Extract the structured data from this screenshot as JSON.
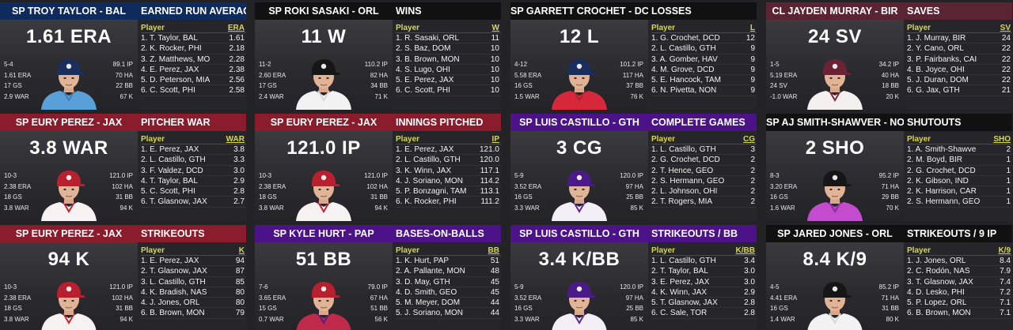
{
  "colors": {
    "black": "#111111",
    "red": "#8a1c2c",
    "navy": "#0f2a5c",
    "purple": "#4c1288",
    "maroon": "#5a2433"
  },
  "cards": [
    {
      "left_title": "SP TROY TAYLOR - BAL",
      "right_title": "EARNED RUN AVERAGE",
      "color": "navy",
      "big": "1.61 ERA",
      "lstats": [
        "5-4",
        "1.61 ERA",
        "17 GS",
        "2.9 WAR"
      ],
      "rstats": [
        "89.1 IP",
        "70 HA",
        "22 BB",
        "67 K"
      ],
      "player_icon": "player-baseball-cap-icon",
      "jersey": "light-blue",
      "cap": "navy",
      "col_head": [
        "Player",
        "ERA"
      ],
      "rows": [
        [
          "1. T. Taylor, BAL",
          "1.61"
        ],
        [
          "2. K. Rocker, PHI",
          "2.18"
        ],
        [
          "3. Z. Matthews, MO",
          "2.28"
        ],
        [
          "4. E. Perez, JAX",
          "2.38"
        ],
        [
          "5. D. Peterson, MIA",
          "2.56"
        ],
        [
          "6. C. Scott, PHI",
          "2.58"
        ]
      ]
    },
    {
      "left_title": "SP ROKI SASAKI - ORL",
      "right_title": "WINS",
      "color": "black",
      "big": "11 W",
      "lstats": [
        "11-2",
        "2.60 ERA",
        "17 GS",
        "2.4 WAR"
      ],
      "rstats": [
        "110.2 IP",
        "82 HA",
        "34 BB",
        "71 K"
      ],
      "player_icon": "player-baseball-cap-icon",
      "jersey": "pinstripe",
      "cap": "black",
      "col_head": [
        "Player",
        "W"
      ],
      "rows": [
        [
          "1. R. Sasaki, ORL",
          "11"
        ],
        [
          "2. S. Baz, DOM",
          "10"
        ],
        [
          "3. B. Brown, MON",
          "10"
        ],
        [
          "4. S. Lugo, OHI",
          "10"
        ],
        [
          "5. E. Perez, JAX",
          "10"
        ],
        [
          "6. C. Scott, PHI",
          "10"
        ]
      ]
    },
    {
      "left_title": "SP GARRETT CROCHET - DCD",
      "right_title": "LOSSES",
      "color": "black",
      "big": "12 L",
      "lstats": [
        "4-12",
        "5.58 ERA",
        "16 GS",
        "1.5 WAR"
      ],
      "rstats": [
        "101.2 IP",
        "117 HA",
        "37 BB",
        "76 K"
      ],
      "player_icon": "player-baseball-cap-icon",
      "jersey": "red",
      "cap": "navy",
      "col_head": [
        "Player",
        "L"
      ],
      "rows": [
        [
          "1. G. Crochet, DCD",
          "12"
        ],
        [
          "2. L. Castillo, GTH",
          "9"
        ],
        [
          "3. A. Gomber, HAV",
          "9"
        ],
        [
          "4. M. Grove, DCD",
          "9"
        ],
        [
          "5. E. Hancock, TAM",
          "9"
        ],
        [
          "6. N. Pivetta, NON",
          "9"
        ]
      ]
    },
    {
      "left_title": "CL JAYDEN MURRAY - BIR",
      "right_title": "SAVES",
      "color": "maroon",
      "big": "24 SV",
      "lstats": [
        "1-5",
        "5.19 ERA",
        "24 SV",
        "-1.0 WAR"
      ],
      "rstats": [
        "34.2 IP",
        "40 HA",
        "18 BB",
        "20 K"
      ],
      "player_icon": "player-baseball-cap-icon",
      "jersey": "white-maroon",
      "cap": "maroon",
      "col_head": [
        "Player",
        "SV"
      ],
      "rows": [
        [
          "1. J. Murray, BIR",
          "24"
        ],
        [
          "2. Y. Cano, ORL",
          "22"
        ],
        [
          "3. P. Fairbanks, CAI",
          "22"
        ],
        [
          "4. B. Joyce, OHI",
          "22"
        ],
        [
          "5. J. Duran, DOM",
          "22"
        ],
        [
          "6. G. Jax, GTH",
          "21"
        ]
      ]
    },
    {
      "left_title": "SP EURY PEREZ - JAX",
      "right_title": "PITCHER WAR",
      "color": "red",
      "big": "3.8 WAR",
      "lstats": [
        "10-3",
        "2.38 ERA",
        "18 GS",
        "3.8 WAR"
      ],
      "rstats": [
        "121.0 IP",
        "102 HA",
        "31 BB",
        "94 K"
      ],
      "player_icon": "player-baseball-cap-icon",
      "jersey": "white-red",
      "cap": "red",
      "col_head": [
        "Player",
        "WAR"
      ],
      "rows": [
        [
          "1. E. Perez, JAX",
          "3.8"
        ],
        [
          "2. L. Castillo, GTH",
          "3.3"
        ],
        [
          "3. F. Valdez, DCD",
          "3.0"
        ],
        [
          "4. T. Taylor, BAL",
          "2.9"
        ],
        [
          "5. C. Scott, PHI",
          "2.8"
        ],
        [
          "6. T. Glasnow, JAX",
          "2.7"
        ]
      ]
    },
    {
      "left_title": "SP EURY PEREZ - JAX",
      "right_title": "INNINGS PITCHED",
      "color": "red",
      "big": "121.0 IP",
      "lstats": [
        "10-3",
        "2.38 ERA",
        "18 GS",
        "3.8 WAR"
      ],
      "rstats": [
        "121.0 IP",
        "102 HA",
        "31 BB",
        "94 K"
      ],
      "player_icon": "player-baseball-cap-icon",
      "jersey": "white-red",
      "cap": "red",
      "col_head": [
        "Player",
        "IP"
      ],
      "rows": [
        [
          "1. E. Perez, JAX",
          "121.0"
        ],
        [
          "2. L. Castillo, GTH",
          "120.0"
        ],
        [
          "3. K. Winn, JAX",
          "117.1"
        ],
        [
          "4. J. Soriano, MON",
          "114.2"
        ],
        [
          "5. P. Bonzagni, TAM",
          "113.1"
        ],
        [
          "6. K. Rocker, PHI",
          "111.2"
        ]
      ]
    },
    {
      "left_title": "SP LUIS CASTILLO - GTH",
      "right_title": "COMPLETE GAMES",
      "color": "purple",
      "big": "3 CG",
      "lstats": [
        "5-9",
        "3.52 ERA",
        "16 GS",
        "3.3 WAR"
      ],
      "rstats": [
        "120.0 IP",
        "97 HA",
        "25 BB",
        "85 K"
      ],
      "player_icon": "player-baseball-cap-icon",
      "jersey": "white-purple",
      "cap": "purple",
      "col_head": [
        "Player",
        "CG"
      ],
      "rows": [
        [
          "1. L. Castillo, GTH",
          "3"
        ],
        [
          "2. G. Crochet, DCD",
          "2"
        ],
        [
          "2. T. Hence, GEO",
          "2"
        ],
        [
          "2. S. Hermann, GEO",
          "2"
        ],
        [
          "2. L. Johnson, OHI",
          "2"
        ],
        [
          "2. T. Rogers, MIA",
          "2"
        ]
      ]
    },
    {
      "left_title": "SP AJ SMITH-SHAWVER - NON",
      "right_title": "SHUTOUTS",
      "color": "black",
      "big": "2 SHO",
      "lstats": [
        "8-3",
        "3.20 ERA",
        "16 GS",
        "1.6 WAR"
      ],
      "rstats": [
        "95.2 IP",
        "71 HA",
        "29 BB",
        "70 K"
      ],
      "player_icon": "player-baseball-cap-icon",
      "jersey": "magenta",
      "cap": "black",
      "col_head": [
        "Player",
        "SHO"
      ],
      "rows": [
        [
          "1. A. Smith-Shawve",
          "2"
        ],
        [
          "2. M. Boyd, BIR",
          "1"
        ],
        [
          "2. G. Crochet, DCD",
          "1"
        ],
        [
          "2. K. Gibson, IND",
          "1"
        ],
        [
          "2. K. Harrison, CAR",
          "1"
        ],
        [
          "2. S. Hermann, GEO",
          "1"
        ]
      ]
    },
    {
      "left_title": "SP EURY PEREZ - JAX",
      "right_title": "STRIKEOUTS",
      "color": "red",
      "big": "94 K",
      "lstats": [
        "10-3",
        "2.38 ERA",
        "18 GS",
        "3.8 WAR"
      ],
      "rstats": [
        "121.0 IP",
        "102 HA",
        "31 BB",
        "94 K"
      ],
      "player_icon": "player-baseball-cap-icon",
      "jersey": "white-red",
      "cap": "red",
      "col_head": [
        "Player",
        "K"
      ],
      "rows": [
        [
          "1. E. Perez, JAX",
          "94"
        ],
        [
          "2. T. Glasnow, JAX",
          "87"
        ],
        [
          "3. L. Castillo, GTH",
          "85"
        ],
        [
          "4. K. Bradish, NAS",
          "80"
        ],
        [
          "4. J. Jones, ORL",
          "80"
        ],
        [
          "6. B. Brown, MON",
          "79"
        ]
      ]
    },
    {
      "left_title": "SP KYLE HURT - PAP",
      "right_title": "BASES-ON-BALLS",
      "color": "purple",
      "big": "51 BB",
      "lstats": [
        "7-6",
        "3.65 ERA",
        "15 GS",
        "0.7 WAR"
      ],
      "rstats": [
        "79.0 IP",
        "67 HA",
        "51 BB",
        "56 K"
      ],
      "player_icon": "player-baseball-cap-icon",
      "jersey": "purple-red",
      "cap": "red",
      "col_head": [
        "Player",
        "BB"
      ],
      "rows": [
        [
          "1. K. Hurt, PAP",
          "51"
        ],
        [
          "2. A. Pallante, MON",
          "48"
        ],
        [
          "3. D. May, GTH",
          "45"
        ],
        [
          "4. D. Smith, GEO",
          "45"
        ],
        [
          "5. M. Meyer, DOM",
          "44"
        ],
        [
          "5. J. Soriano, MON",
          "44"
        ]
      ]
    },
    {
      "left_title": "SP LUIS CASTILLO - GTH",
      "right_title": "STRIKEOUTS / BB",
      "color": "purple",
      "big": "3.4 K/BB",
      "lstats": [
        "5-9",
        "3.52 ERA",
        "16 GS",
        "3.3 WAR"
      ],
      "rstats": [
        "120.0 IP",
        "97 HA",
        "25 BB",
        "85 K"
      ],
      "player_icon": "player-baseball-cap-icon",
      "jersey": "white-purple",
      "cap": "purple",
      "col_head": [
        "Player",
        "K/BB"
      ],
      "rows": [
        [
          "1. L. Castillo, GTH",
          "3.4"
        ],
        [
          "2. T. Taylor, BAL",
          "3.0"
        ],
        [
          "3. E. Perez, JAX",
          "3.0"
        ],
        [
          "4. K. Winn, JAX",
          "2.9"
        ],
        [
          "5. T. Glasnow, JAX",
          "2.8"
        ],
        [
          "6. C. Sale, TOR",
          "2.8"
        ]
      ]
    },
    {
      "left_title": "SP JARED JONES - ORL",
      "right_title": "STRIKEOUTS / 9 IP",
      "color": "black",
      "big": "8.4 K/9",
      "lstats": [
        "4-5",
        "4.41 ERA",
        "16 GS",
        "1.4 WAR"
      ],
      "rstats": [
        "85.2 IP",
        "71 HA",
        "31 BB",
        "80 K"
      ],
      "player_icon": "player-baseball-cap-icon",
      "jersey": "pinstripe",
      "cap": "black",
      "col_head": [
        "Player",
        "K/9"
      ],
      "rows": [
        [
          "1. J. Jones, ORL",
          "8.4"
        ],
        [
          "2. C. Rodón, NAS",
          "7.9"
        ],
        [
          "3. T. Glasnow, JAX",
          "7.4"
        ],
        [
          "4. D. Lesko, PHI",
          "7.2"
        ],
        [
          "5. P. Lopez, ORL",
          "7.1"
        ],
        [
          "6. B. Brown, MON",
          "7.1"
        ]
      ]
    }
  ]
}
